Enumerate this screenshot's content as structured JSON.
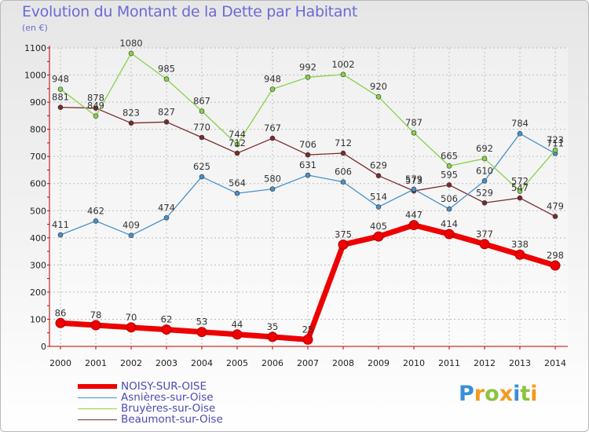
{
  "title": "Evolution du Montant de la Dette par Habitant",
  "subtitle": "(en €)",
  "logo": {
    "letters": [
      {
        "ch": "P",
        "color": "#3a8fd8"
      },
      {
        "ch": "r",
        "color": "#f39a1e"
      },
      {
        "ch": "o",
        "color": "#8bc43f"
      },
      {
        "ch": "x",
        "color": "#f39a1e"
      },
      {
        "ch": "i",
        "color": "#3a8fd8"
      },
      {
        "ch": "t",
        "color": "#8bc43f"
      },
      {
        "ch": "i",
        "color": "#f39a1e"
      }
    ]
  },
  "chart_data": {
    "type": "line",
    "title": "Evolution du Montant de la Dette par Habitant",
    "subtitle": "(en €)",
    "xlabel": "",
    "ylabel": "",
    "x": [
      "2000",
      "2001",
      "2002",
      "2003",
      "2004",
      "2005",
      "2006",
      "2007",
      "2008",
      "2009",
      "2010",
      "2011",
      "2012",
      "2013",
      "2014"
    ],
    "ylim": [
      0,
      1100
    ],
    "yticks": [
      "0",
      "100",
      "200",
      "300",
      "400",
      "500",
      "600",
      "700",
      "800",
      "900",
      "1000",
      "1100"
    ],
    "grid": true,
    "legend_position": "bottom-left",
    "series": [
      {
        "name": "NOISY-SUR-OISE",
        "color": "#ee0000",
        "values": [
          86,
          78,
          70,
          62,
          53,
          44,
          35,
          25,
          375,
          405,
          447,
          414,
          377,
          338,
          298
        ],
        "labels": [
          "86",
          "78",
          "70",
          "62",
          "53",
          "44",
          "35",
          "25",
          "375",
          "405",
          "447",
          "414",
          "377",
          "338",
          "298"
        ]
      },
      {
        "name": "Asnières-sur-Oise",
        "color": "#4a90c8",
        "values": [
          411,
          462,
          409,
          474,
          625,
          564,
          580,
          631,
          606,
          514,
          579,
          506,
          610,
          784,
          711
        ],
        "labels": [
          "411",
          "462",
          "409",
          "474",
          "625",
          "564",
          "580",
          "631",
          "606",
          "514",
          "579",
          "506",
          "610",
          "784",
          "711"
        ]
      },
      {
        "name": "Bruyères-sur-Oise",
        "color": "#86d24a",
        "values": [
          948,
          849,
          1080,
          985,
          867,
          744,
          948,
          992,
          1002,
          920,
          787,
          665,
          692,
          572,
          723
        ],
        "labels": [
          "948",
          "849",
          "1080",
          "985",
          "867",
          "744",
          "948",
          "992",
          "1002",
          "920",
          "787",
          "665",
          "692",
          "572",
          "723"
        ]
      },
      {
        "name": "Beaumont-sur-Oise",
        "color": "#7a2a2a",
        "values": [
          881,
          878,
          823,
          827,
          770,
          712,
          767,
          706,
          712,
          629,
          573,
          595,
          529,
          547,
          479
        ],
        "labels": [
          "881",
          "878",
          "823",
          "827",
          "770",
          "712",
          "767",
          "706",
          "712",
          "629",
          "573",
          "595",
          "529",
          "547",
          "479"
        ]
      }
    ]
  }
}
